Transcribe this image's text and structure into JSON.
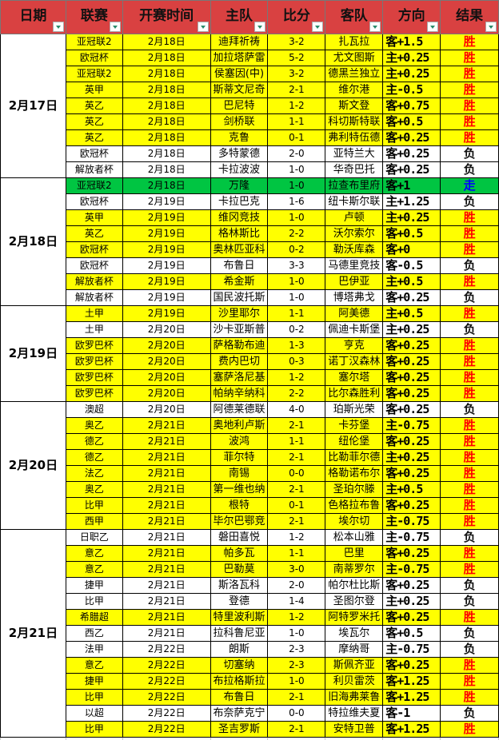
{
  "headers": [
    "日期",
    "联赛",
    "开赛时间",
    "主队",
    "比分",
    "客队",
    "方向",
    "结果"
  ],
  "colors": {
    "header": "#d94141",
    "win_row": "#ffff00",
    "push_row": "#00c542",
    "win_text": "#ff0000",
    "push_text": "#0000ff",
    "lose_text": "#111111"
  },
  "groups": [
    {
      "date": "2月17日",
      "rows": [
        [
          "亚冠联2",
          "2月18日",
          "迪拜祈祷",
          "3-2",
          "扎瓦拉",
          "客+1.5",
          "胜"
        ],
        [
          "欧冠杯",
          "2月18日",
          "加拉塔萨雷",
          "5-2",
          "尤文图斯",
          "主+0.25",
          "胜"
        ],
        [
          "亚冠联2",
          "2月18日",
          "侯塞因(中)",
          "3-2",
          "德黑兰独立",
          "主+0.25",
          "胜"
        ],
        [
          "英甲",
          "2月18日",
          "斯蒂文尼奇",
          "2-1",
          "维尔港",
          "主-0.5",
          "胜"
        ],
        [
          "英乙",
          "2月18日",
          "巴尼特",
          "1-2",
          "斯文登",
          "客+0.75",
          "胜"
        ],
        [
          "英乙",
          "2月18日",
          "剑桥联",
          "1-1",
          "科切斯特联",
          "客+0.5",
          "胜"
        ],
        [
          "英乙",
          "2月18日",
          "克鲁",
          "0-1",
          "弗利特伍德",
          "客+0.25",
          "胜"
        ],
        [
          "欧冠杯",
          "2月18日",
          "多特蒙德",
          "2-0",
          "亚特兰大",
          "客+0.25",
          "负"
        ],
        [
          "解放者杯",
          "2月18日",
          "卡拉波波",
          "1-0",
          "华奇巴托",
          "客+0.25",
          "负"
        ]
      ]
    },
    {
      "date": "2月18日",
      "rows": [
        [
          "亚冠联2",
          "2月18日",
          "万隆",
          "1-0",
          "拉查布里府",
          "客+1",
          "走"
        ],
        [
          "欧冠杯",
          "2月19日",
          "卡拉巴克",
          "1-6",
          "纽卡斯尔联",
          "主+1.25",
          "负"
        ],
        [
          "英甲",
          "2月19日",
          "维冈竞技",
          "1-0",
          "卢顿",
          "主+0.25",
          "胜"
        ],
        [
          "英乙",
          "2月19日",
          "格林斯比",
          "2-2",
          "沃尔索尔",
          "客+0.5",
          "胜"
        ],
        [
          "欧冠杯",
          "2月19日",
          "奥林匹亚科",
          "0-2",
          "勒沃库森",
          "客+0",
          "胜"
        ],
        [
          "欧冠杯",
          "2月19日",
          "布鲁日",
          "3-3",
          "马德里竞技",
          "客-0.5",
          "负"
        ],
        [
          "解放者杯",
          "2月19日",
          "希金斯",
          "1-0",
          "巴伊亚",
          "主+0.5",
          "胜"
        ],
        [
          "解放者杯",
          "2月19日",
          "国民波托斯",
          "1-0",
          "博塔弗戈",
          "客+0.25",
          "负"
        ]
      ]
    },
    {
      "date": "2月19日",
      "rows": [
        [
          "土甲",
          "2月19日",
          "沙里耶尔",
          "1-1",
          "阿美德",
          "主+0.5",
          "胜"
        ],
        [
          "土甲",
          "2月20日",
          "沙卡亚斯普",
          "0-2",
          "佩迪卡斯堡",
          "主+0.25",
          "负"
        ],
        [
          "欧罗巴杯",
          "2月20日",
          "萨格勒布迪",
          "1-3",
          "亨克",
          "客+0.25",
          "胜"
        ],
        [
          "欧罗巴杯",
          "2月20日",
          "费内巴切",
          "0-3",
          "诺丁汉森林",
          "客+0.25",
          "胜"
        ],
        [
          "欧罗巴杯",
          "2月20日",
          "塞萨洛尼基",
          "1-2",
          "塞尔塔",
          "客+0.25",
          "胜"
        ],
        [
          "欧罗巴杯",
          "2月20日",
          "帕纳辛纳科",
          "2-2",
          "比尔森胜利",
          "客+0.25",
          "胜"
        ]
      ]
    },
    {
      "date": "2月20日",
      "rows": [
        [
          "澳超",
          "2月20日",
          "阿德莱德联",
          "4-0",
          "珀斯光荣",
          "客+0.25",
          "负"
        ],
        [
          "奥乙",
          "2月21日",
          "奥地利卢斯",
          "2-1",
          "卡芬堡",
          "主-0.75",
          "胜"
        ],
        [
          "德乙",
          "2月21日",
          "波鸿",
          "1-1",
          "纽伦堡",
          "客+0.25",
          "胜"
        ],
        [
          "德乙",
          "2月21日",
          "菲尔特",
          "2-1",
          "比勒菲尔德",
          "主+0.25",
          "胜"
        ],
        [
          "法乙",
          "2月21日",
          "南锡",
          "0-0",
          "格勒诺布尔",
          "客+0.25",
          "胜"
        ],
        [
          "奥乙",
          "2月21日",
          "第一维也纳",
          "2-1",
          "圣珀尔滕",
          "主+0.5",
          "胜"
        ],
        [
          "比甲",
          "2月21日",
          "根特",
          "0-1",
          "色格拉布鲁",
          "客+0.25",
          "胜"
        ],
        [
          "西甲",
          "2月21日",
          "毕尔巴鄂竞",
          "2-1",
          "埃尔切",
          "主-0.75",
          "胜"
        ]
      ]
    },
    {
      "date": "2月21日",
      "rows": [
        [
          "日职乙",
          "2月21日",
          "磐田喜悦",
          "1-2",
          "松本山雅",
          "主-0.75",
          "负"
        ],
        [
          "意乙",
          "2月21日",
          "帕多瓦",
          "1-1",
          "巴里",
          "客+0.25",
          "胜"
        ],
        [
          "意乙",
          "2月21日",
          "巴勒莫",
          "3-0",
          "南蒂罗尔",
          "主-0.75",
          "胜"
        ],
        [
          "捷甲",
          "2月21日",
          "斯洛瓦科",
          "2-0",
          "帕尔杜比斯",
          "客+0.25",
          "负"
        ],
        [
          "比甲",
          "2月21日",
          "登德",
          "1-4",
          "圣图尔登",
          "主+0.25",
          "负"
        ],
        [
          "希腊超",
          "2月21日",
          "特里波利斯",
          "1-2",
          "阿特罗米托",
          "客+0.25",
          "胜"
        ],
        [
          "西乙",
          "2月21日",
          "拉科鲁尼亚",
          "1-0",
          "埃瓦尔",
          "客+0.5",
          "负"
        ],
        [
          "法甲",
          "2月22日",
          "朗斯",
          "2-3",
          "摩纳哥",
          "主-0.75",
          "负"
        ],
        [
          "意乙",
          "2月22日",
          "切塞纳",
          "2-3",
          "斯佩齐亚",
          "客+0.25",
          "胜"
        ],
        [
          "捷甲",
          "2月22日",
          "布拉格斯拉",
          "1-0",
          "利贝雷茨",
          "客+1.25",
          "胜"
        ],
        [
          "比甲",
          "2月22日",
          "布鲁日",
          "2-1",
          "旧海弗莱鲁",
          "客+1.25",
          "胜"
        ],
        [
          "以超",
          "2月22日",
          "布奈萨克宁",
          "0-0",
          "特拉维夫夏",
          "客-1",
          "负"
        ],
        [
          "比甲",
          "2月22日",
          "圣吉罗斯",
          "2-1",
          "安特卫普",
          "客+1.25",
          "胜"
        ]
      ]
    }
  ]
}
